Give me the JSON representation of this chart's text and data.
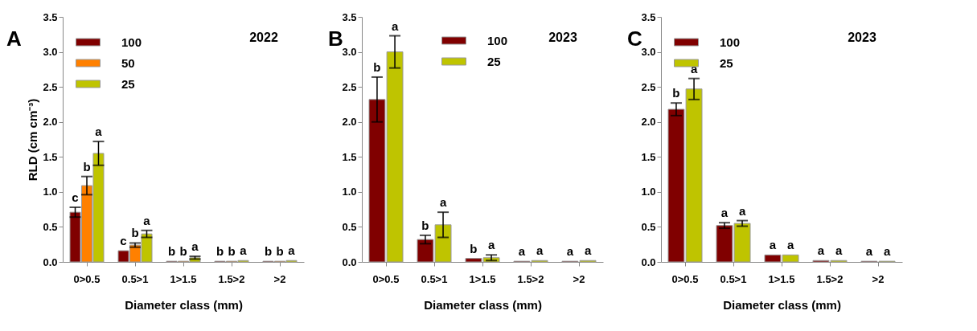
{
  "chart_data": [
    {
      "type": "bar",
      "title": "A",
      "annotations": [
        "2022"
      ],
      "xlabel": "Diameter class (mm)",
      "ylabel": "RLD (cm cm⁻³)",
      "categories": [
        "0>0.5",
        "0.5>1",
        "1>1.5",
        "1.5>2",
        ">2"
      ],
      "legend": "top left",
      "grid": false,
      "ylim": [
        0,
        3.5
      ],
      "yticks": [
        {
          "value": 0,
          "label": "0.0"
        },
        0.5,
        {
          "value": 1,
          "label": "1.0"
        },
        1.5,
        {
          "value": 2,
          "label": "2.0"
        },
        2.5,
        {
          "value": 3,
          "label": "3.0"
        },
        3.5
      ],
      "series": [
        {
          "name": "100",
          "color": "#800000",
          "values": [
            0.71,
            0.16,
            0.01,
            0.01,
            0.01
          ],
          "errors": [
            0.07,
            null,
            null,
            null,
            null
          ],
          "value_labels": [
            "c",
            "c",
            "b",
            "b",
            "b"
          ]
        },
        {
          "name": "50",
          "color": "#ff8000",
          "values": [
            1.09,
            0.24,
            0.01,
            0.01,
            0.01
          ],
          "errors": [
            0.13,
            0.03,
            null,
            null,
            null
          ],
          "value_labels": [
            "b",
            "b",
            "b",
            "b",
            "b"
          ]
        },
        {
          "name": "25",
          "color": "#bfc400",
          "values": [
            1.55,
            0.4,
            0.06,
            0.02,
            0.02
          ],
          "errors": [
            0.17,
            0.05,
            0.02,
            null,
            null
          ],
          "value_labels": [
            "a",
            "a",
            "a",
            "a",
            "a"
          ]
        }
      ]
    },
    {
      "type": "bar",
      "title": "B",
      "annotations": [
        "2023"
      ],
      "xlabel": "Diameter class (mm)",
      "categories": [
        "0>0.5",
        "0.5>1",
        "1>1.5",
        "1.5>2",
        ">2"
      ],
      "legend": "top",
      "grid": false,
      "ylim": [
        0,
        3.5
      ],
      "yticks": [
        {
          "value": 0,
          "label": "0.0"
        },
        0.5,
        {
          "value": 1,
          "label": "1.0"
        },
        1.5,
        {
          "value": 2,
          "label": "2.0"
        },
        2.5,
        {
          "value": 3,
          "label": "3.0"
        },
        3.5
      ],
      "series": [
        {
          "name": "100",
          "color": "#800000",
          "values": [
            2.32,
            0.32,
            0.05,
            0.01,
            0.01
          ],
          "errors": [
            0.32,
            0.06,
            null,
            null,
            null
          ],
          "value_labels": [
            "b",
            "b",
            "b",
            "a",
            "a"
          ]
        },
        {
          "name": "25",
          "color": "#bfc400",
          "values": [
            3.0,
            0.53,
            0.06,
            0.02,
            0.02
          ],
          "errors": [
            0.23,
            0.18,
            0.04,
            null,
            null
          ],
          "value_labels": [
            "a",
            "a",
            "a",
            "a",
            "a"
          ]
        }
      ]
    },
    {
      "type": "bar",
      "title": "C",
      "annotations": [
        "2023"
      ],
      "xlabel": "Diameter class (mm)",
      "categories": [
        "0>0.5",
        "0.5>1",
        "1>1.5",
        "1.5>2",
        ">2"
      ],
      "legend": "top left",
      "grid": false,
      "ylim": [
        0,
        3.5
      ],
      "yticks": [
        {
          "value": 0,
          "label": "0.0"
        },
        0.5,
        {
          "value": 1,
          "label": "1.0"
        },
        1.5,
        {
          "value": 2,
          "label": "2.0"
        },
        2.5,
        {
          "value": 3,
          "label": "3.0"
        },
        3.5
      ],
      "series": [
        {
          "name": "100",
          "color": "#800000",
          "values": [
            2.18,
            0.52,
            0.1,
            0.02,
            0.01
          ],
          "errors": [
            0.09,
            0.04,
            null,
            null,
            null
          ],
          "value_labels": [
            "b",
            "a",
            "a",
            "a",
            "a"
          ]
        },
        {
          "name": "25",
          "color": "#bfc400",
          "values": [
            2.47,
            0.55,
            0.1,
            0.02,
            0.01
          ],
          "errors": [
            0.15,
            0.04,
            null,
            null,
            null
          ],
          "value_labels": [
            "a",
            "a",
            "a",
            "a",
            "a"
          ]
        }
      ]
    }
  ]
}
